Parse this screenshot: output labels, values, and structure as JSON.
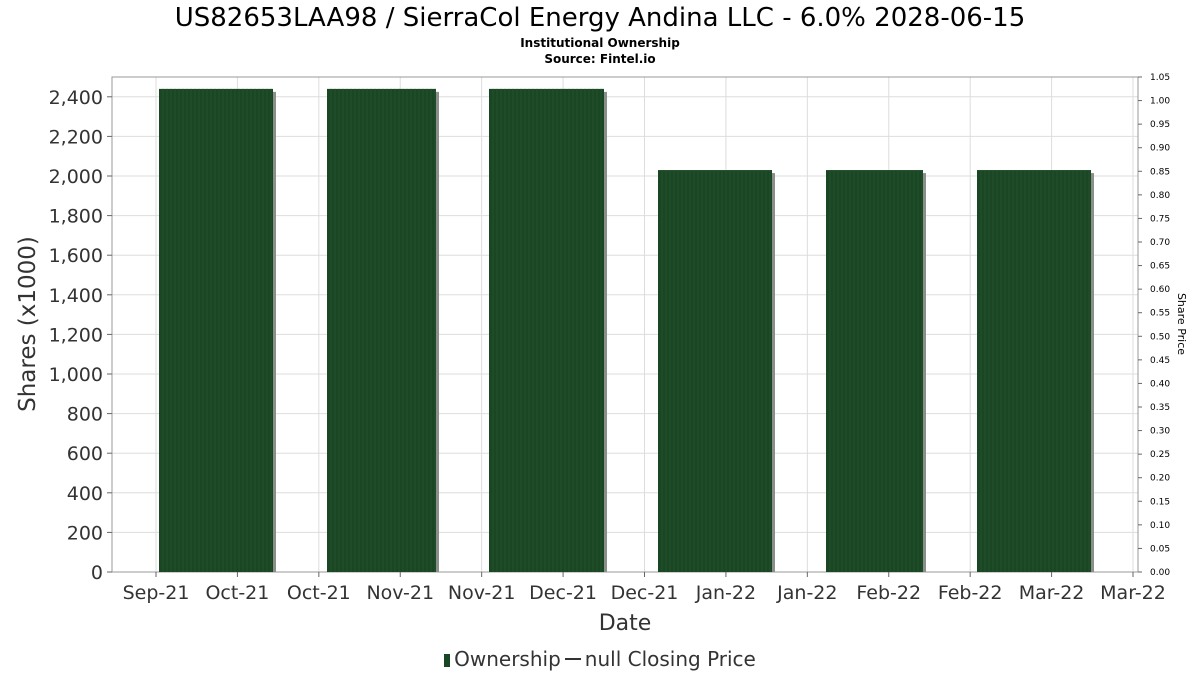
{
  "title": "US82653LAA98 / SierraCol Energy Andina LLC - 6.0% 2028-06-15",
  "subtitle": "Institutional Ownership",
  "source": "Source: Fintel.io",
  "legend": {
    "ownership_label": "Ownership",
    "price_label": "null Closing Price"
  },
  "colors": {
    "bar": "#1a4723",
    "bar_shadow": "#8a8f8a",
    "grid": "#dddddd",
    "frame": "#999999"
  },
  "chart_data": {
    "type": "bar",
    "title": "US82653LAA98 / SierraCol Energy Andina LLC - 6.0% 2028-06-15",
    "xlabel": "Date",
    "ylabel": "Shares (x1000)",
    "y2label": "Share Price",
    "ylim": [
      0,
      2500
    ],
    "y2lim": [
      0,
      1.05
    ],
    "yticks": [
      0,
      200,
      400,
      600,
      800,
      1000,
      1200,
      1400,
      1600,
      1800,
      2000,
      2200,
      2400
    ],
    "ytick_labels": [
      "0",
      "200",
      "400",
      "600",
      "800",
      "1,000",
      "1,200",
      "1,400",
      "1,600",
      "1,800",
      "2,000",
      "2,200",
      "2,400"
    ],
    "y2tick_labels": [
      "0.00",
      "0.05",
      "0.10",
      "0.15",
      "0.20",
      "0.25",
      "0.30",
      "0.35",
      "0.40",
      "0.45",
      "0.50",
      "0.55",
      "0.60",
      "0.65",
      "0.70",
      "0.75",
      "0.80",
      "0.85",
      "0.90",
      "0.95",
      "1.00",
      "1.05"
    ],
    "xtick_labels": [
      "Sep-21",
      "Oct-21",
      "Oct-21",
      "Nov-21",
      "Nov-21",
      "Dec-21",
      "Dec-21",
      "Jan-22",
      "Jan-22",
      "Feb-22",
      "Feb-22",
      "Mar-22",
      "Mar-22"
    ],
    "series": [
      {
        "name": "Ownership",
        "values": [
          2440,
          2440,
          2440,
          2030,
          2030,
          2030
        ]
      }
    ],
    "grid": true,
    "legend_position": "bottom-center"
  }
}
